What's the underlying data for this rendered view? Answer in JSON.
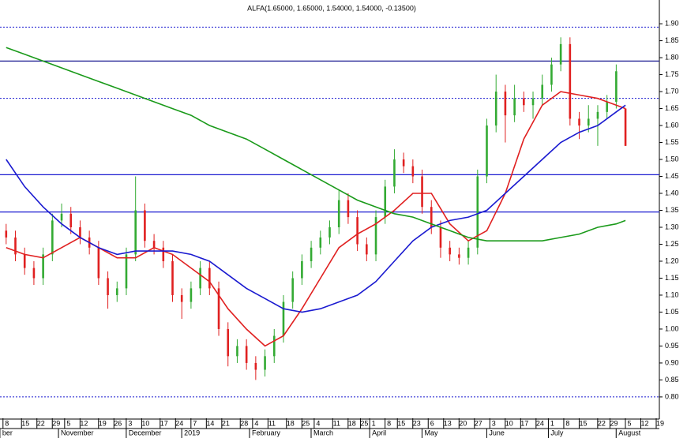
{
  "chart_data": {
    "type": "candlestick",
    "title": "ALFA(1.65000, 1.65000, 1.54000, 1.54000, -0.13500)",
    "up_color": "#33aa33",
    "down_color": "#e02020",
    "x": [
      0,
      3,
      6,
      9,
      12,
      15,
      18,
      21,
      24,
      27,
      30,
      33,
      36,
      39,
      42,
      45,
      48,
      51,
      54,
      57,
      60,
      63,
      66,
      69,
      72,
      75,
      78,
      81,
      84,
      87,
      90,
      93,
      96,
      99,
      102,
      105,
      108,
      111,
      114,
      117,
      120,
      123,
      126,
      129,
      132,
      135,
      138,
      141,
      144,
      147,
      150,
      153,
      156,
      159,
      162,
      165,
      168,
      171,
      174,
      177,
      180,
      183,
      186,
      189,
      192,
      195,
      198,
      201
    ],
    "open": [
      1.29,
      1.27,
      1.22,
      1.18,
      1.15,
      1.22,
      1.32,
      1.34,
      1.3,
      1.27,
      1.24,
      1.15,
      1.1,
      1.12,
      1.22,
      1.35,
      1.26,
      1.24,
      1.2,
      1.1,
      1.08,
      1.12,
      1.18,
      1.12,
      1.0,
      0.92,
      0.95,
      0.9,
      0.88,
      0.92,
      0.98,
      1.08,
      1.15,
      1.2,
      1.24,
      1.27,
      1.3,
      1.38,
      1.33,
      1.25,
      1.22,
      1.33,
      1.42,
      1.5,
      1.48,
      1.45,
      1.36,
      1.3,
      1.24,
      1.22,
      1.21,
      1.24,
      1.45,
      1.6,
      1.7,
      1.63,
      1.68,
      1.66,
      1.68,
      1.72,
      1.78,
      1.84,
      1.62,
      1.6,
      1.62,
      1.64,
      1.67,
      1.65
    ],
    "high": [
      1.31,
      1.29,
      1.24,
      1.2,
      1.24,
      1.34,
      1.37,
      1.36,
      1.32,
      1.29,
      1.26,
      1.17,
      1.14,
      1.24,
      1.45,
      1.37,
      1.28,
      1.26,
      1.22,
      1.12,
      1.14,
      1.2,
      1.2,
      1.14,
      1.02,
      0.97,
      0.97,
      0.92,
      0.94,
      1.0,
      1.1,
      1.17,
      1.22,
      1.26,
      1.29,
      1.32,
      1.41,
      1.4,
      1.35,
      1.27,
      1.35,
      1.44,
      1.53,
      1.52,
      1.5,
      1.47,
      1.38,
      1.32,
      1.26,
      1.24,
      1.26,
      1.47,
      1.62,
      1.75,
      1.72,
      1.72,
      1.7,
      1.7,
      1.75,
      1.8,
      1.86,
      1.86,
      1.64,
      1.66,
      1.66,
      1.69,
      1.78,
      1.65
    ],
    "low": [
      1.25,
      1.2,
      1.16,
      1.13,
      1.13,
      1.2,
      1.3,
      1.28,
      1.25,
      1.22,
      1.13,
      1.06,
      1.08,
      1.1,
      1.2,
      1.24,
      1.22,
      1.18,
      1.08,
      1.03,
      1.06,
      1.1,
      1.1,
      0.98,
      0.89,
      0.9,
      0.88,
      0.85,
      0.86,
      0.9,
      0.96,
      1.06,
      1.13,
      1.18,
      1.22,
      1.25,
      1.28,
      1.31,
      1.23,
      1.2,
      1.2,
      1.31,
      1.4,
      1.46,
      1.43,
      1.34,
      1.28,
      1.21,
      1.2,
      1.19,
      1.19,
      1.22,
      1.43,
      1.58,
      1.55,
      1.61,
      1.64,
      1.62,
      1.66,
      1.7,
      1.76,
      1.6,
      1.56,
      1.58,
      1.54,
      1.62,
      1.65,
      1.54
    ],
    "close": [
      1.27,
      1.22,
      1.18,
      1.15,
      1.22,
      1.32,
      1.34,
      1.3,
      1.27,
      1.24,
      1.15,
      1.1,
      1.12,
      1.22,
      1.35,
      1.26,
      1.24,
      1.2,
      1.1,
      1.08,
      1.12,
      1.18,
      1.12,
      1.0,
      0.92,
      0.95,
      0.9,
      0.88,
      0.92,
      0.98,
      1.08,
      1.15,
      1.2,
      1.24,
      1.27,
      1.3,
      1.38,
      1.33,
      1.25,
      1.22,
      1.33,
      1.42,
      1.5,
      1.48,
      1.45,
      1.36,
      1.3,
      1.24,
      1.22,
      1.21,
      1.24,
      1.45,
      1.6,
      1.7,
      1.63,
      1.68,
      1.66,
      1.68,
      1.72,
      1.78,
      1.84,
      1.62,
      1.6,
      1.62,
      1.64,
      1.67,
      1.76,
      1.54
    ],
    "lines": [
      {
        "color": "#e02020",
        "x": [
          0,
          6,
          12,
          18,
          24,
          30,
          36,
          42,
          48,
          54,
          60,
          66,
          72,
          78,
          84,
          90,
          96,
          102,
          108,
          114,
          120,
          126,
          132,
          138,
          144,
          150,
          156,
          162,
          168,
          174,
          180,
          186,
          192,
          198,
          201
        ],
        "values": [
          1.24,
          1.22,
          1.21,
          1.24,
          1.27,
          1.24,
          1.21,
          1.21,
          1.24,
          1.22,
          1.18,
          1.14,
          1.06,
          1.0,
          0.95,
          0.98,
          1.06,
          1.15,
          1.24,
          1.28,
          1.31,
          1.35,
          1.4,
          1.4,
          1.31,
          1.26,
          1.29,
          1.4,
          1.56,
          1.66,
          1.7,
          1.69,
          1.68,
          1.66,
          1.65
        ]
      },
      {
        "color": "#1a1ad0",
        "x": [
          0,
          6,
          12,
          18,
          24,
          30,
          36,
          42,
          48,
          54,
          60,
          66,
          72,
          78,
          84,
          90,
          96,
          102,
          108,
          114,
          120,
          126,
          132,
          138,
          144,
          150,
          156,
          162,
          168,
          174,
          180,
          186,
          192,
          198,
          201
        ],
        "values": [
          1.5,
          1.42,
          1.36,
          1.31,
          1.27,
          1.24,
          1.22,
          1.23,
          1.23,
          1.23,
          1.22,
          1.2,
          1.16,
          1.12,
          1.09,
          1.06,
          1.05,
          1.06,
          1.08,
          1.1,
          1.14,
          1.2,
          1.26,
          1.3,
          1.32,
          1.33,
          1.35,
          1.4,
          1.45,
          1.5,
          1.55,
          1.58,
          1.6,
          1.64,
          1.66
        ]
      },
      {
        "color": "#1a9a1a",
        "x": [
          0,
          6,
          12,
          18,
          24,
          30,
          36,
          42,
          48,
          54,
          60,
          66,
          72,
          78,
          84,
          90,
          96,
          102,
          108,
          114,
          120,
          126,
          132,
          138,
          144,
          150,
          156,
          162,
          168,
          174,
          180,
          186,
          192,
          198,
          201
        ],
        "values": [
          1.83,
          1.81,
          1.79,
          1.77,
          1.75,
          1.73,
          1.71,
          1.69,
          1.67,
          1.65,
          1.63,
          1.6,
          1.58,
          1.56,
          1.53,
          1.5,
          1.47,
          1.44,
          1.41,
          1.38,
          1.36,
          1.34,
          1.33,
          1.31,
          1.29,
          1.27,
          1.26,
          1.26,
          1.26,
          1.26,
          1.27,
          1.28,
          1.3,
          1.31,
          1.32
        ]
      }
    ],
    "hlines": [
      {
        "value": 1.89,
        "color": "#1a1ad0",
        "dashed": true
      },
      {
        "value": 1.79,
        "color": "#1a1a90",
        "dashed": false
      },
      {
        "value": 1.68,
        "color": "#1a1ad0",
        "dashed": true
      },
      {
        "value": 1.455,
        "color": "#1a1ad0",
        "dashed": false
      },
      {
        "value": 1.345,
        "color": "#1a1ad0",
        "dashed": false
      },
      {
        "value": 0.8,
        "color": "#1a1ad0",
        "dashed": true
      }
    ],
    "xlim": [
      -2,
      212
    ],
    "ylim": [
      0.737,
      1.97
    ],
    "yticks": [
      {
        "value": 0.8,
        "label": "0.80"
      },
      {
        "value": 0.85,
        "label": "0.85"
      },
      {
        "value": 0.9,
        "label": "0.90"
      },
      {
        "value": 0.95,
        "label": "0.95"
      },
      {
        "value": 1.0,
        "label": "1.00"
      },
      {
        "value": 1.05,
        "label": "1.05"
      },
      {
        "value": 1.1,
        "label": "1.10"
      },
      {
        "value": 1.15,
        "label": "1.15"
      },
      {
        "value": 1.2,
        "label": "1.20"
      },
      {
        "value": 1.25,
        "label": "1.25"
      },
      {
        "value": 1.3,
        "label": "1.30"
      },
      {
        "value": 1.35,
        "label": "1.35"
      },
      {
        "value": 1.4,
        "label": "1.40"
      },
      {
        "value": 1.45,
        "label": "1.45"
      },
      {
        "value": 1.5,
        "label": "1.50"
      },
      {
        "value": 1.55,
        "label": "1.55"
      },
      {
        "value": 1.6,
        "label": "1.60"
      },
      {
        "value": 1.65,
        "label": "1.65"
      },
      {
        "value": 1.7,
        "label": "1.70"
      },
      {
        "value": 1.75,
        "label": "1.75"
      },
      {
        "value": 1.8,
        "label": "1.80"
      },
      {
        "value": 1.85,
        "label": "1.85"
      },
      {
        "value": 1.9,
        "label": "1.90"
      }
    ],
    "xticks": [
      {
        "value": 0,
        "label": "8"
      },
      {
        "value": 6,
        "label": "15"
      },
      {
        "value": 11,
        "label": "22"
      },
      {
        "value": 16,
        "label": "29"
      },
      {
        "value": 20,
        "label": "5"
      },
      {
        "value": 25,
        "label": "12"
      },
      {
        "value": 31,
        "label": "19"
      },
      {
        "value": 36,
        "label": "26"
      },
      {
        "value": 40,
        "label": "3"
      },
      {
        "value": 45,
        "label": "10"
      },
      {
        "value": 51,
        "label": "17"
      },
      {
        "value": 56,
        "label": "24"
      },
      {
        "value": 61,
        "label": "7"
      },
      {
        "value": 66,
        "label": "14"
      },
      {
        "value": 71,
        "label": "21"
      },
      {
        "value": 77,
        "label": "28"
      },
      {
        "value": 81,
        "label": "4"
      },
      {
        "value": 86,
        "label": "11"
      },
      {
        "value": 92,
        "label": "18"
      },
      {
        "value": 97,
        "label": "25"
      },
      {
        "value": 101,
        "label": "4"
      },
      {
        "value": 107,
        "label": "11"
      },
      {
        "value": 112,
        "label": "18"
      },
      {
        "value": 116,
        "label": "25"
      },
      {
        "value": 119,
        "label": "1"
      },
      {
        "value": 124,
        "label": "8"
      },
      {
        "value": 128,
        "label": "15"
      },
      {
        "value": 133,
        "label": "23"
      },
      {
        "value": 138,
        "label": "6"
      },
      {
        "value": 143,
        "label": "13"
      },
      {
        "value": 148,
        "label": "20"
      },
      {
        "value": 153,
        "label": "27"
      },
      {
        "value": 158,
        "label": "3"
      },
      {
        "value": 163,
        "label": "10"
      },
      {
        "value": 168,
        "label": "17"
      },
      {
        "value": 173,
        "label": "24"
      },
      {
        "value": 177,
        "label": "1"
      },
      {
        "value": 182,
        "label": "8"
      },
      {
        "value": 187,
        "label": "15"
      },
      {
        "value": 193,
        "label": "22"
      },
      {
        "value": 197,
        "label": "29"
      },
      {
        "value": 202,
        "label": "5"
      },
      {
        "value": 207,
        "label": "12"
      },
      {
        "value": 212,
        "label": "19"
      }
    ],
    "months": [
      {
        "value": -1,
        "label": "ber"
      },
      {
        "value": 18,
        "label": "November"
      },
      {
        "value": 40,
        "label": "December"
      },
      {
        "value": 58,
        "label": "2019"
      },
      {
        "value": 80,
        "label": "February"
      },
      {
        "value": 100,
        "label": "March"
      },
      {
        "value": 119,
        "label": "April"
      },
      {
        "value": 136,
        "label": "May"
      },
      {
        "value": 157,
        "label": "June"
      },
      {
        "value": 177,
        "label": "July"
      },
      {
        "value": 199,
        "label": "August"
      }
    ]
  }
}
